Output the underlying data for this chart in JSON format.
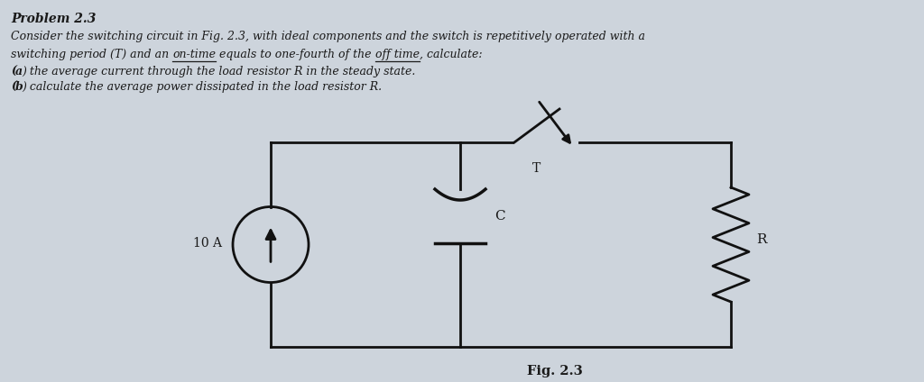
{
  "background_color": "#cdd4dc",
  "title_bold": "Problem 2.3",
  "line1": "Consider the switching circuit in Fig. 2.3, with ideal components and the switch is repetitively operated with a",
  "line2_pre": "switching period (T) and an ",
  "line2_ul1": "on-time",
  "line2_mid": " equals to one-fourth of the ",
  "line2_ul2": "off time",
  "line2_post": ", calculate:",
  "line3a": "(a)  the average current through the load resistor R in the steady state.",
  "line3b": "(b)  calculate the average power dissipated in the load resistor R.",
  "fig_label": "Fig. 2.3",
  "current_source_label": "10 A",
  "capacitor_label": "C",
  "switch_label": "T",
  "resistor_label": "R",
  "text_color": "#1a1a1a",
  "circuit_color": "#111111"
}
